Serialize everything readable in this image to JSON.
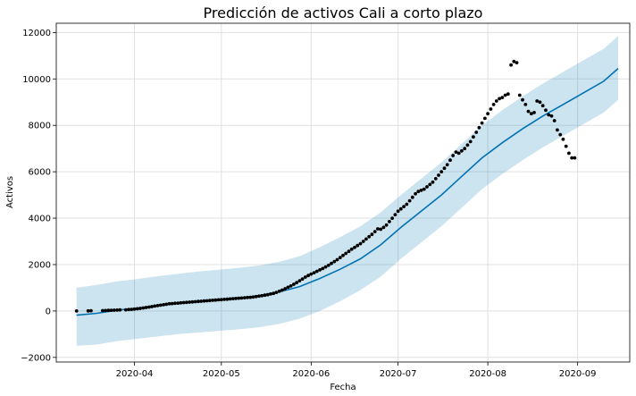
{
  "chart_data": {
    "type": "line",
    "title": "Predicción de activos Cali a corto plazo",
    "xlabel": "Fecha",
    "ylabel": "Activos",
    "xlim": [
      "2020-03-05",
      "2020-09-19"
    ],
    "ylim": [
      -2200,
      12400
    ],
    "x_ticks": [
      "2020-04-01",
      "2020-05-01",
      "2020-06-01",
      "2020-07-01",
      "2020-08-01",
      "2020-09-01"
    ],
    "x_tick_labels": [
      "2020-04",
      "2020-05",
      "2020-06",
      "2020-07",
      "2020-08",
      "2020-09"
    ],
    "y_ticks": [
      -2000,
      0,
      2000,
      4000,
      6000,
      8000,
      10000,
      12000
    ],
    "y_tick_labels": [
      "−2000",
      "0",
      "2000",
      "4000",
      "6000",
      "8000",
      "10000",
      "12000"
    ],
    "grid": true,
    "series": [
      {
        "kind": "forecast",
        "color": "#0072B2",
        "x": [
          "2020-03-12",
          "2020-03-19",
          "2020-03-26",
          "2020-04-02",
          "2020-04-09",
          "2020-04-16",
          "2020-04-23",
          "2020-04-30",
          "2020-05-07",
          "2020-05-14",
          "2020-05-21",
          "2020-05-28",
          "2020-06-04",
          "2020-06-11",
          "2020-06-18",
          "2020-06-25",
          "2020-07-02",
          "2020-07-09",
          "2020-07-16",
          "2020-07-23",
          "2020-07-30",
          "2020-08-06",
          "2020-08-13",
          "2020-08-20",
          "2020-08-27",
          "2020-09-03",
          "2020-09-10",
          "2020-09-15"
        ],
        "y": [
          -180,
          -100,
          40,
          120,
          230,
          320,
          400,
          490,
          560,
          660,
          820,
          1050,
          1400,
          1800,
          2250,
          2850,
          3600,
          4300,
          5000,
          5800,
          6600,
          7250,
          7850,
          8400,
          8900,
          9400,
          9900,
          10450
        ],
        "lower": [
          -1500,
          -1450,
          -1300,
          -1200,
          -1100,
          -1000,
          -930,
          -860,
          -790,
          -700,
          -560,
          -330,
          0,
          420,
          900,
          1480,
          2250,
          2950,
          3650,
          4450,
          5250,
          5900,
          6500,
          7050,
          7550,
          8050,
          8550,
          9100
        ],
        "upper": [
          1000,
          1120,
          1280,
          1380,
          1500,
          1600,
          1700,
          1780,
          1860,
          1960,
          2120,
          2360,
          2750,
          3180,
          3650,
          4250,
          5000,
          5700,
          6400,
          7200,
          8000,
          8650,
          9250,
          9800,
          10300,
          10800,
          11300,
          11850
        ]
      },
      {
        "kind": "observed",
        "color": "#000000",
        "x": [
          "2020-03-12",
          "2020-03-16",
          "2020-03-17",
          "2020-03-21",
          "2020-03-22",
          "2020-03-23",
          "2020-03-24",
          "2020-03-25",
          "2020-03-26",
          "2020-03-27",
          "2020-03-29",
          "2020-03-30",
          "2020-03-31",
          "2020-04-01",
          "2020-04-02",
          "2020-04-03",
          "2020-04-04",
          "2020-04-05",
          "2020-04-06",
          "2020-04-07",
          "2020-04-08",
          "2020-04-09",
          "2020-04-10",
          "2020-04-11",
          "2020-04-12",
          "2020-04-13",
          "2020-04-14",
          "2020-04-15",
          "2020-04-16",
          "2020-04-17",
          "2020-04-18",
          "2020-04-19",
          "2020-04-20",
          "2020-04-21",
          "2020-04-22",
          "2020-04-23",
          "2020-04-24",
          "2020-04-25",
          "2020-04-26",
          "2020-04-27",
          "2020-04-28",
          "2020-04-29",
          "2020-04-30",
          "2020-05-01",
          "2020-05-02",
          "2020-05-03",
          "2020-05-04",
          "2020-05-05",
          "2020-05-06",
          "2020-05-07",
          "2020-05-08",
          "2020-05-09",
          "2020-05-10",
          "2020-05-11",
          "2020-05-12",
          "2020-05-13",
          "2020-05-14",
          "2020-05-15",
          "2020-05-16",
          "2020-05-17",
          "2020-05-18",
          "2020-05-19",
          "2020-05-20",
          "2020-05-21",
          "2020-05-22",
          "2020-05-23",
          "2020-05-24",
          "2020-05-25",
          "2020-05-26",
          "2020-05-27",
          "2020-05-28",
          "2020-05-29",
          "2020-05-30",
          "2020-05-31",
          "2020-06-01",
          "2020-06-02",
          "2020-06-03",
          "2020-06-04",
          "2020-06-05",
          "2020-06-06",
          "2020-06-07",
          "2020-06-08",
          "2020-06-09",
          "2020-06-10",
          "2020-06-11",
          "2020-06-12",
          "2020-06-13",
          "2020-06-14",
          "2020-06-15",
          "2020-06-16",
          "2020-06-17",
          "2020-06-18",
          "2020-06-19",
          "2020-06-20",
          "2020-06-21",
          "2020-06-22",
          "2020-06-23",
          "2020-06-24",
          "2020-06-25",
          "2020-06-26",
          "2020-06-27",
          "2020-06-28",
          "2020-06-29",
          "2020-06-30",
          "2020-07-01",
          "2020-07-02",
          "2020-07-03",
          "2020-07-04",
          "2020-07-05",
          "2020-07-06",
          "2020-07-07",
          "2020-07-08",
          "2020-07-09",
          "2020-07-10",
          "2020-07-11",
          "2020-07-12",
          "2020-07-13",
          "2020-07-14",
          "2020-07-15",
          "2020-07-16",
          "2020-07-17",
          "2020-07-18",
          "2020-07-19",
          "2020-07-20",
          "2020-07-21",
          "2020-07-22",
          "2020-07-23",
          "2020-07-24",
          "2020-07-25",
          "2020-07-26",
          "2020-07-27",
          "2020-07-28",
          "2020-07-29",
          "2020-07-30",
          "2020-07-31",
          "2020-08-01",
          "2020-08-02",
          "2020-08-03",
          "2020-08-04",
          "2020-08-05",
          "2020-08-06",
          "2020-08-07",
          "2020-08-08",
          "2020-08-09",
          "2020-08-10",
          "2020-08-11",
          "2020-08-12",
          "2020-08-13",
          "2020-08-14",
          "2020-08-15",
          "2020-08-16",
          "2020-08-17",
          "2020-08-18",
          "2020-08-19",
          "2020-08-20",
          "2020-08-21",
          "2020-08-22",
          "2020-08-23",
          "2020-08-24",
          "2020-08-25",
          "2020-08-26",
          "2020-08-27",
          "2020-08-28",
          "2020-08-29",
          "2020-08-30",
          "2020-08-31"
        ],
        "y": [
          0,
          5,
          10,
          15,
          20,
          25,
          30,
          35,
          40,
          45,
          50,
          60,
          70,
          80,
          95,
          110,
          130,
          150,
          170,
          190,
          210,
          230,
          250,
          270,
          290,
          310,
          320,
          330,
          340,
          350,
          360,
          370,
          380,
          390,
          400,
          410,
          420,
          430,
          440,
          450,
          460,
          470,
          480,
          490,
          500,
          510,
          520,
          530,
          540,
          550,
          560,
          570,
          580,
          590,
          600,
          620,
          640,
          660,
          680,
          700,
          730,
          760,
          800,
          850,
          900,
          960,
          1020,
          1080,
          1150,
          1220,
          1300,
          1380,
          1460,
          1530,
          1590,
          1650,
          1710,
          1770,
          1830,
          1900,
          1970,
          2050,
          2130,
          2210,
          2300,
          2390,
          2480,
          2570,
          2660,
          2740,
          2820,
          2900,
          3000,
          3100,
          3200,
          3300,
          3420,
          3540,
          3520,
          3600,
          3700,
          3850,
          4000,
          4150,
          4300,
          4400,
          4500,
          4600,
          4750,
          4900,
          5050,
          5150,
          5200,
          5250,
          5350,
          5450,
          5550,
          5700,
          5850,
          6000,
          6150,
          6300,
          6500,
          6700,
          6850,
          6800,
          6900,
          7000,
          7150,
          7300,
          7500,
          7700,
          7900,
          8100,
          8300,
          8500,
          8700,
          8900,
          9050,
          9150,
          9200,
          9300,
          9350,
          10600,
          10750,
          10700,
          9300,
          9100,
          8900,
          8600,
          8500,
          8550,
          9050,
          9000,
          8850,
          8650,
          8450,
          8400,
          8200,
          7800,
          7600,
          7400,
          7100,
          6800,
          6600,
          6600
        ]
      }
    ]
  }
}
